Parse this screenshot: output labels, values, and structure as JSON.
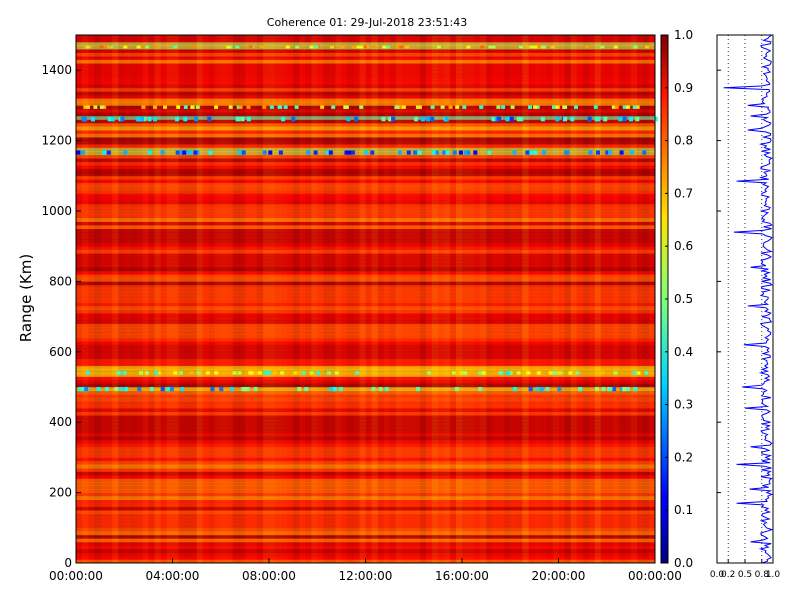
{
  "chart_data": {
    "type": "heatmap",
    "title": "Coherence 01: 29-Jul-2018 23:51:43",
    "ylabel": "Range (Km)",
    "xlabel": "",
    "x_tick_labels": [
      "00:00:00",
      "04:00:00",
      "08:00:00",
      "12:00:00",
      "16:00:00",
      "20:00:00",
      "00:00:00"
    ],
    "x_range_hours": [
      0,
      24
    ],
    "ylim": [
      0,
      1500
    ],
    "y_ticks": [
      0,
      200,
      400,
      600,
      800,
      1000,
      1200,
      1400
    ],
    "colorbar": {
      "colormap": "jet",
      "range": [
        0,
        1
      ],
      "ticks": [
        "0.0",
        "0.1",
        "0.2",
        "0.3",
        "0.4",
        "0.5",
        "0.6",
        "0.7",
        "0.8",
        "0.9",
        "1.0"
      ]
    },
    "band_levels": [
      {
        "range_km": [
          1480,
          1500
        ],
        "coherence": 0.93
      },
      {
        "range_km": [
          1460,
          1475
        ],
        "coherence": 0.55
      },
      {
        "range_km": [
          1380,
          1420
        ],
        "coherence": 0.9
      },
      {
        "range_km": [
          1300,
          1320
        ],
        "coherence": 0.7
      },
      {
        "range_km": [
          1255,
          1270
        ],
        "coherence": 0.45
      },
      {
        "range_km": [
          1225,
          1240
        ],
        "coherence": 0.65
      },
      {
        "range_km": [
          1160,
          1175
        ],
        "coherence": 0.55
      },
      {
        "range_km": [
          1060,
          1080
        ],
        "coherence": 0.78
      },
      {
        "range_km": [
          980,
          1010
        ],
        "coherence": 0.8
      },
      {
        "range_km": [
          910,
          950
        ],
        "coherence": 0.95
      },
      {
        "range_km": [
          840,
          880
        ],
        "coherence": 0.93
      },
      {
        "range_km": [
          740,
          780
        ],
        "coherence": 0.8
      },
      {
        "range_km": [
          640,
          680
        ],
        "coherence": 0.78
      },
      {
        "range_km": [
          580,
          620
        ],
        "coherence": 0.93
      },
      {
        "range_km": [
          530,
          560
        ],
        "coherence": 0.62
      },
      {
        "range_km": [
          485,
          500
        ],
        "coherence": 0.6
      },
      {
        "range_km": [
          370,
          420
        ],
        "coherence": 0.95
      },
      {
        "range_km": [
          300,
          330
        ],
        "coherence": 0.8
      },
      {
        "range_km": [
          200,
          240
        ],
        "coherence": 0.75
      },
      {
        "range_km": [
          100,
          140
        ],
        "coherence": 0.82
      }
    ],
    "side_panel": {
      "type": "line",
      "xlim": [
        0,
        1
      ],
      "x_tick_labels": [
        "0.0",
        "0.2",
        "0.5",
        "0.8",
        "1.0"
      ],
      "y_ticks": [
        0,
        200,
        400,
        600,
        800,
        1000,
        1200,
        1400
      ],
      "series_color": "#0000ff",
      "dips": [
        {
          "range_km": 1350,
          "value": 0.12
        },
        {
          "range_km": 1300,
          "value": 0.55
        },
        {
          "range_km": 1270,
          "value": 0.6
        },
        {
          "range_km": 1230,
          "value": 0.55
        },
        {
          "range_km": 1085,
          "value": 0.35
        },
        {
          "range_km": 940,
          "value": 0.3
        },
        {
          "range_km": 840,
          "value": 0.6
        },
        {
          "range_km": 730,
          "value": 0.55
        },
        {
          "range_km": 620,
          "value": 0.48
        },
        {
          "range_km": 500,
          "value": 0.45
        },
        {
          "range_km": 440,
          "value": 0.5
        },
        {
          "range_km": 330,
          "value": 0.6
        },
        {
          "range_km": 280,
          "value": 0.35
        },
        {
          "range_km": 210,
          "value": 0.58
        },
        {
          "range_km": 170,
          "value": 0.35
        },
        {
          "range_km": 60,
          "value": 0.6
        }
      ]
    }
  }
}
